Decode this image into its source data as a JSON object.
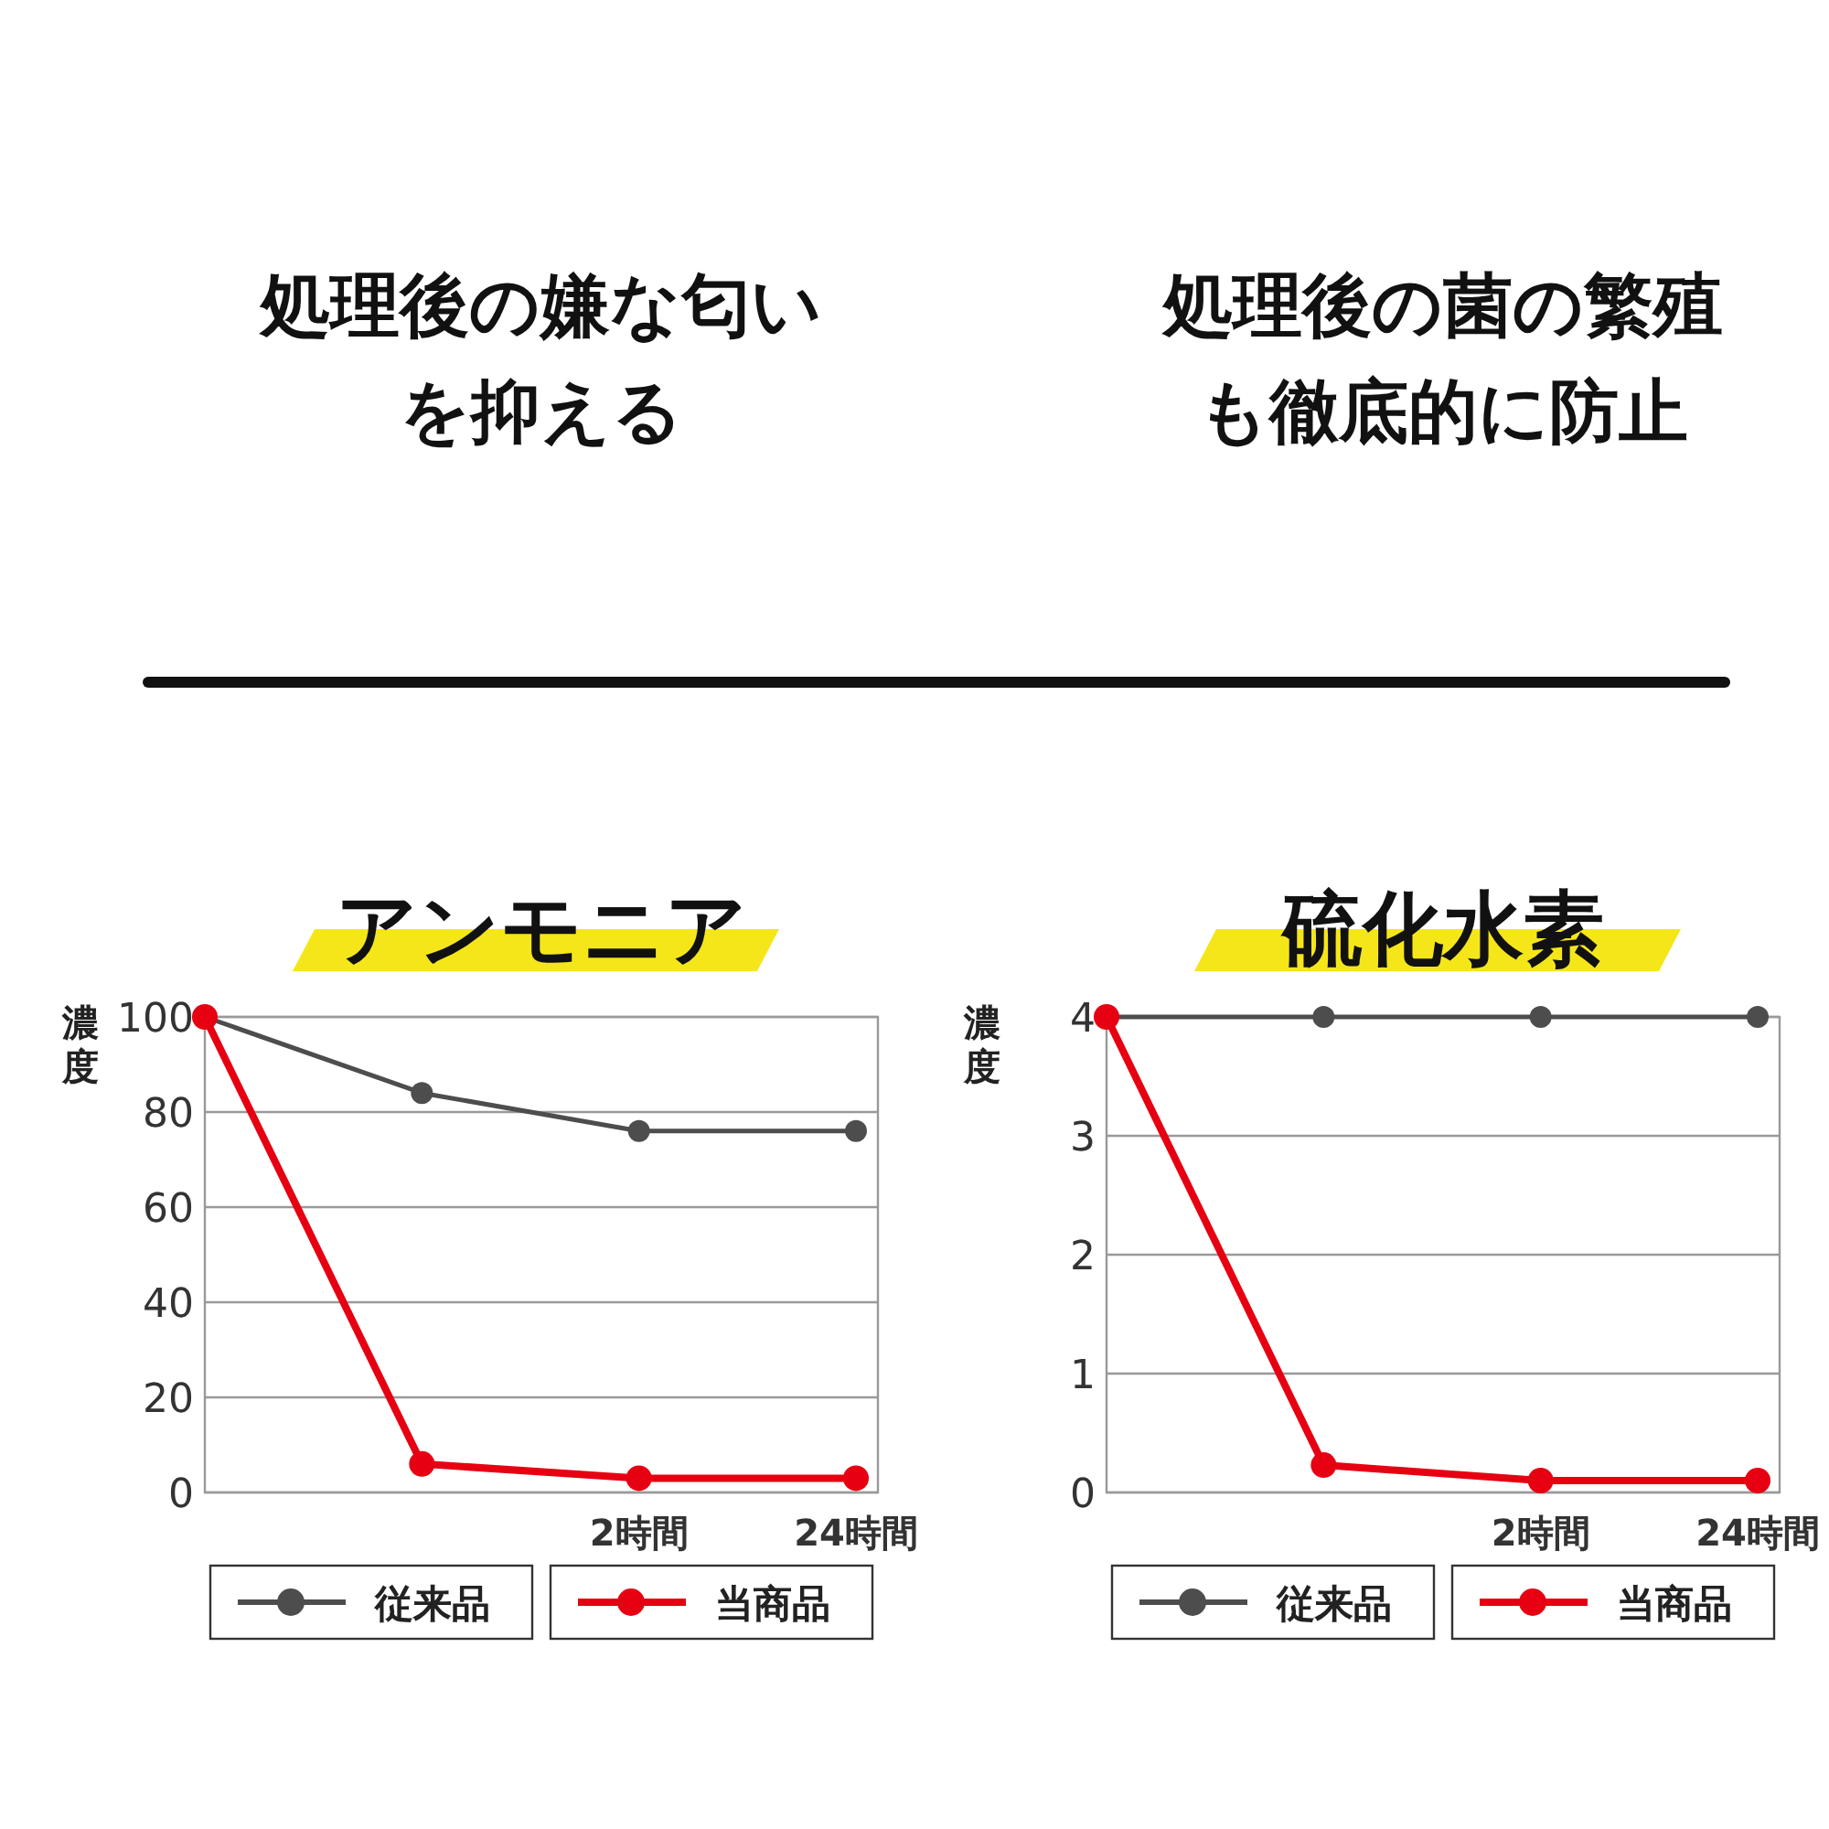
{
  "chart_data": [
    {
      "type": "line",
      "subtitle": "処理後の嫌な匂いを抑える",
      "title": "アンモニア",
      "ylabel": "濃度",
      "categories": [
        null,
        null,
        "2時間",
        "24時間"
      ],
      "series": [
        {
          "name": "従来品",
          "color": "#4d4d4d",
          "values": [
            100,
            84,
            76,
            76
          ]
        },
        {
          "name": "当商品",
          "color": "#e60012",
          "values": [
            100,
            6,
            3,
            3
          ]
        }
      ],
      "ylim": [
        0,
        100
      ],
      "yticks": [
        0,
        20,
        40,
        60,
        80,
        100
      ],
      "grid": "y",
      "legend": "bottom",
      "marker": "circle",
      "line_style": "solid"
    },
    {
      "type": "line",
      "subtitle": "処理後の菌の繁殖も徹底的に防止",
      "title": "硫化水素",
      "ylabel": "濃度",
      "categories": [
        null,
        null,
        "2時間",
        "24時間"
      ],
      "series": [
        {
          "name": "従来品",
          "color": "#4d4d4d",
          "values": [
            4,
            4,
            4,
            4
          ]
        },
        {
          "name": "当商品",
          "color": "#e60012",
          "values": [
            4,
            0.23,
            0.1,
            0.1
          ]
        }
      ],
      "ylim": [
        0,
        4
      ],
      "yticks": [
        0,
        1,
        2,
        3,
        4
      ],
      "grid": "y",
      "legend": "bottom",
      "marker": "circle",
      "line_style": "solid"
    }
  ]
}
